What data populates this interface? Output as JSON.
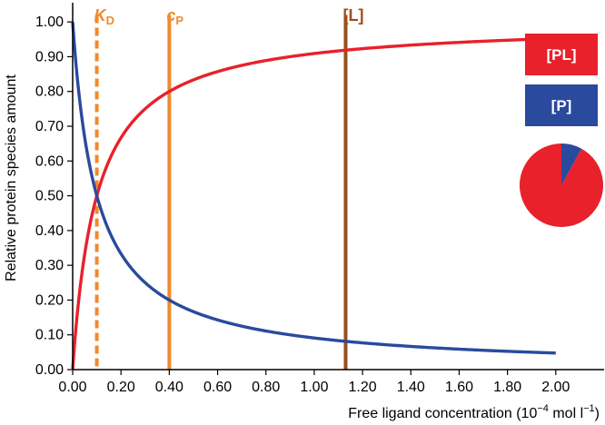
{
  "chart_data": {
    "type": "line",
    "xlabel": "Free ligand concentration (10",
    "xlabel_exp": "−4",
    "xlabel_unit_a": " mol l",
    "xlabel_unit_exp": "−1",
    "xlabel_close": ")",
    "ylabel": "Relative protein species amount",
    "xlim": [
      0,
      2.2
    ],
    "ylim": [
      0,
      1.05
    ],
    "x_ticks": [
      "0.00",
      "0.20",
      "0.40",
      "0.60",
      "0.80",
      "1.00",
      "1.20",
      "1.40",
      "1.60",
      "1.80",
      "2.00"
    ],
    "y_ticks": [
      "0.00",
      "0.10",
      "0.20",
      "0.30",
      "0.40",
      "0.50",
      "0.60",
      "0.70",
      "0.80",
      "0.90",
      "1.00"
    ],
    "curve_x_max": 2.0,
    "kd": 0.1,
    "series": [
      {
        "name": "[PL]",
        "color": "#e8212b",
        "formula": "L/(Kd+L)"
      },
      {
        "name": "[P]",
        "color": "#2a4a9e",
        "formula": "Kd/(Kd+L)"
      }
    ],
    "markers": [
      {
        "key": "kd",
        "italic": "K",
        "sub": "D",
        "x": 0.1,
        "color": "#f0892d",
        "dashed": true
      },
      {
        "key": "cp",
        "italic": "c",
        "sub": "P",
        "x": 0.4,
        "color": "#f0892d",
        "dashed": false
      },
      {
        "key": "l",
        "italic": "",
        "sub": "",
        "text": "[L]",
        "x": 1.13,
        "color": "#9b4f1f",
        "dashed": false
      }
    ],
    "legend": [
      {
        "label": "[PL]",
        "color": "#e8212b"
      },
      {
        "label": "[P]",
        "color": "#2a4a9e"
      }
    ],
    "legend_position": "right",
    "pie": {
      "values": [
        0.92,
        0.08
      ],
      "colors": [
        "#e8212b",
        "#2a4a9e"
      ]
    },
    "grid": false
  }
}
